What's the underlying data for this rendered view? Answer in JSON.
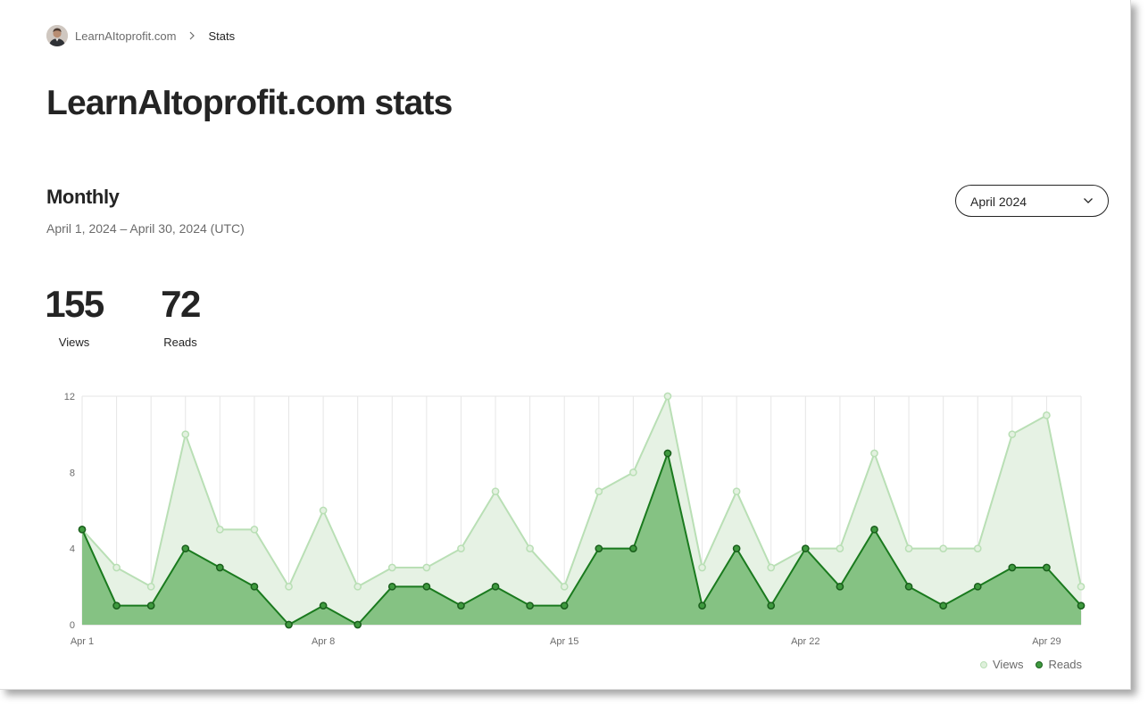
{
  "breadcrumb": {
    "site": "LearnAItoprofit.com",
    "current": "Stats"
  },
  "page": {
    "title": "LearnAItoprofit.com stats"
  },
  "section": {
    "title": "Monthly",
    "date_range": "April 1, 2024 – April 30, 2024 (UTC)"
  },
  "month_select": {
    "value": "April 2024"
  },
  "totals": {
    "views_value": "155",
    "views_label": "Views",
    "reads_value": "72",
    "reads_label": "Reads"
  },
  "legend": {
    "views": "Views",
    "reads": "Reads"
  },
  "colors": {
    "views_line": "#b9dfb5",
    "views_fill": "#e6f2e4",
    "reads_line": "#1a7a1e",
    "reads_fill": "#85c283",
    "reads_point": "#3f9a3f",
    "grid": "#e6e6e6",
    "text": "#242424",
    "muted": "#6b6b6b"
  },
  "icons": {
    "breadcrumb_separator": "chevron-right-icon",
    "dropdown": "chevron-down-icon"
  },
  "chart_data": {
    "type": "area",
    "title": "",
    "xlabel": "",
    "ylabel": "",
    "ylim": [
      0,
      12
    ],
    "yticks": [
      "0",
      "4",
      "8",
      "12"
    ],
    "x": [
      "Apr 1",
      "Apr 2",
      "Apr 3",
      "Apr 4",
      "Apr 5",
      "Apr 6",
      "Apr 7",
      "Apr 8",
      "Apr 9",
      "Apr 10",
      "Apr 11",
      "Apr 12",
      "Apr 13",
      "Apr 14",
      "Apr 15",
      "Apr 16",
      "Apr 17",
      "Apr 18",
      "Apr 19",
      "Apr 20",
      "Apr 21",
      "Apr 22",
      "Apr 23",
      "Apr 24",
      "Apr 25",
      "Apr 26",
      "Apr 27",
      "Apr 28",
      "Apr 29",
      "Apr 30"
    ],
    "xtick_labels": [
      "Apr 1",
      "Apr 8",
      "Apr 15",
      "Apr 22",
      "Apr 29"
    ],
    "grid": true,
    "legend_position": "bottom-right",
    "series": [
      {
        "name": "Views",
        "values": [
          5,
          3,
          2,
          10,
          5,
          5,
          2,
          6,
          2,
          3,
          3,
          4,
          7,
          4,
          2,
          7,
          8,
          12,
          3,
          7,
          3,
          4,
          4,
          9,
          4,
          4,
          4,
          10,
          11,
          2
        ]
      },
      {
        "name": "Reads",
        "values": [
          5,
          1,
          1,
          4,
          3,
          2,
          0,
          1,
          0,
          2,
          2,
          1,
          2,
          1,
          1,
          4,
          4,
          9,
          1,
          4,
          1,
          4,
          2,
          5,
          2,
          1,
          2,
          3,
          3,
          1
        ]
      }
    ]
  }
}
